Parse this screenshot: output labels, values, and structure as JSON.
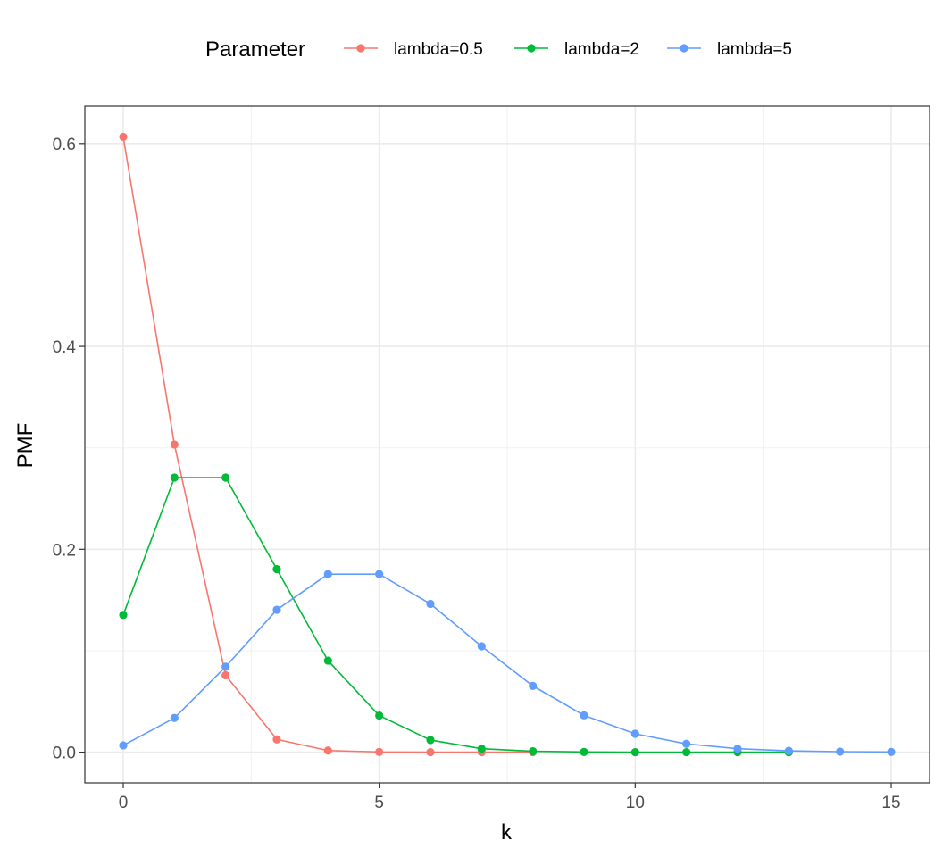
{
  "chart_data": {
    "type": "line",
    "title": "",
    "xlabel": "k",
    "ylabel": "PMF",
    "xlim": [
      -0.75,
      15.75
    ],
    "ylim": [
      -0.0303,
      0.6368
    ],
    "x_ticks": [
      0,
      5,
      10,
      15
    ],
    "x_tick_labels": [
      "0",
      "5",
      "10",
      "15"
    ],
    "y_ticks": [
      0.0,
      0.2,
      0.4,
      0.6
    ],
    "y_tick_labels": [
      "0.0",
      "0.2",
      "0.4",
      "0.6"
    ],
    "x_minor": [
      2.5,
      7.5,
      12.5
    ],
    "y_minor": [
      0.1,
      0.3,
      0.5
    ],
    "grid": true,
    "legend": {
      "title": "Parameter",
      "position": "top"
    },
    "series": [
      {
        "name": "lambda=0.5",
        "color": "#F8766D",
        "x": [
          0,
          1,
          2,
          3,
          4,
          5,
          6,
          7,
          8
        ],
        "values": [
          0.6065,
          0.3033,
          0.0758,
          0.0126,
          0.0016,
          0.0002,
          0.0,
          0.0,
          0.0
        ]
      },
      {
        "name": "lambda=2",
        "color": "#00BA38",
        "x": [
          0,
          1,
          2,
          3,
          4,
          5,
          6,
          7,
          8,
          9,
          10,
          11,
          12,
          13
        ],
        "values": [
          0.1353,
          0.2707,
          0.2707,
          0.1804,
          0.0902,
          0.0361,
          0.012,
          0.0034,
          0.0009,
          0.0002,
          0.0,
          0.0,
          0.0,
          0.0
        ]
      },
      {
        "name": "lambda=5",
        "color": "#619CFF",
        "x": [
          0,
          1,
          2,
          3,
          4,
          5,
          6,
          7,
          8,
          9,
          10,
          11,
          12,
          13,
          14,
          15
        ],
        "values": [
          0.0067,
          0.0337,
          0.0842,
          0.1404,
          0.1755,
          0.1755,
          0.1462,
          0.1044,
          0.0653,
          0.0363,
          0.0181,
          0.0082,
          0.0034,
          0.0013,
          0.0005,
          0.0002
        ]
      }
    ]
  }
}
